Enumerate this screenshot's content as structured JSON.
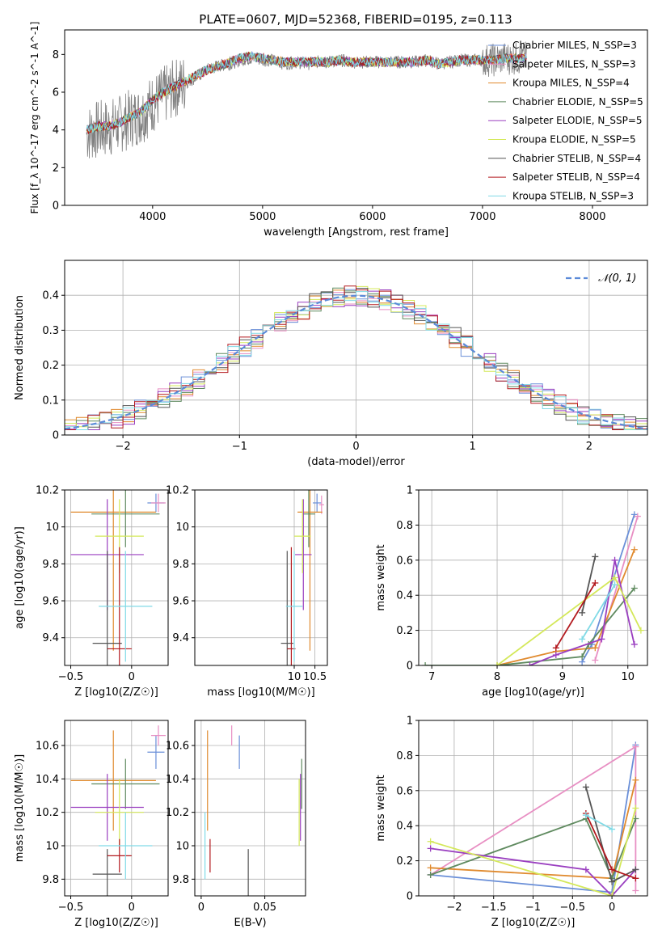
{
  "title": "PLATE=0607, MJD=52368, FIBERID=0195, z=0.113",
  "series_styles": [
    {
      "name": "Chabrier MILES",
      "color": "#6a8fd8"
    },
    {
      "name": "Salpeter MILES",
      "color": "#e88fc3"
    },
    {
      "name": "Kroupa MILES",
      "color": "#e08a2e"
    },
    {
      "name": "Chabrier ELODIE",
      "color": "#5f8a5f"
    },
    {
      "name": "Salpeter ELODIE",
      "color": "#9a3fc0"
    },
    {
      "name": "Kroupa ELODIE",
      "color": "#d4e85a"
    },
    {
      "name": "Chabrier STELIB",
      "color": "#555555"
    },
    {
      "name": "Salpeter STELIB",
      "color": "#b3191e"
    },
    {
      "name": "Kroupa STELIB",
      "color": "#80dae6"
    }
  ],
  "chart_data": [
    {
      "id": "spectrum",
      "type": "line",
      "title": "PLATE=0607, MJD=52368, FIBERID=0195, z=0.113",
      "xlabel": "wavelength [Angstrom, rest frame]",
      "ylabel": "Flux [f_λ 10^-17 erg cm^-2 s^-1 A^-1]",
      "xlim": [
        3200,
        8500
      ],
      "ylim": [
        0,
        9.3
      ],
      "xticks": [
        4000,
        5000,
        6000,
        7000,
        8000
      ],
      "yticks": [
        0,
        2,
        4,
        6,
        8
      ],
      "data_color": "#808080",
      "data_x": [
        3400,
        3500,
        3600,
        3700,
        3800,
        3900,
        4000,
        4100,
        4200,
        4300,
        4400,
        4500,
        4600,
        4700,
        4800,
        4900,
        5000,
        5100,
        5200,
        5300,
        5400,
        5500,
        5600,
        5700,
        5800,
        5900,
        6000,
        6100,
        6200,
        6300,
        6400,
        6500,
        6600,
        6700,
        6800,
        6900,
        7000,
        7100,
        7200,
        7300,
        7400
      ],
      "data_y": [
        3.8,
        4.0,
        4.1,
        4.3,
        4.6,
        4.8,
        5.4,
        5.8,
        6.2,
        6.5,
        6.8,
        7.2,
        7.4,
        7.5,
        7.7,
        7.8,
        7.7,
        7.7,
        7.5,
        7.6,
        7.5,
        7.6,
        7.6,
        7.7,
        7.6,
        7.6,
        7.6,
        7.6,
        7.6,
        7.6,
        7.6,
        7.7,
        7.5,
        7.6,
        7.7,
        7.7,
        7.7,
        7.7,
        7.8,
        7.8,
        7.8
      ],
      "model_x": [
        3400,
        3500,
        3600,
        3700,
        3800,
        3900,
        4000,
        4100,
        4200,
        4300,
        4400,
        4500,
        4600,
        4700,
        4800,
        4900,
        5000,
        5100,
        5200,
        5300,
        5400,
        5500,
        5600,
        5700,
        5800,
        5900,
        6000,
        6100,
        6200,
        6300,
        6400,
        6500,
        6600,
        6700,
        6800,
        6900,
        7000,
        7100,
        7200,
        7300,
        7400
      ],
      "model_y": [
        4.0,
        4.2,
        4.2,
        4.4,
        4.7,
        5.0,
        5.6,
        6.0,
        6.3,
        6.6,
        6.9,
        7.2,
        7.4,
        7.6,
        7.8,
        7.9,
        7.8,
        7.7,
        7.6,
        7.6,
        7.6,
        7.6,
        7.6,
        7.7,
        7.6,
        7.6,
        7.6,
        7.6,
        7.6,
        7.6,
        7.6,
        7.7,
        7.5,
        7.6,
        7.7,
        7.7,
        7.7,
        7.7,
        7.8,
        7.8,
        7.8
      ],
      "legend": [
        "Chabrier MILES, N_SSP=3",
        "Salpeter MILES, N_SSP=3",
        "Kroupa MILES, N_SSP=4",
        "Chabrier ELODIE, N_SSP=5",
        "Salpeter ELODIE, N_SSP=5",
        "Kroupa ELODIE, N_SSP=5",
        "Chabrier STELIB, N_SSP=4",
        "Salpeter STELIB, N_SSP=4",
        "Kroupa STELIB, N_SSP=3"
      ],
      "legend_placement": "upper right"
    },
    {
      "id": "residual-histogram",
      "type": "line",
      "xlabel": "(data-model)/error",
      "ylabel": "Normed distribution",
      "xlim": [
        -2.5,
        2.5
      ],
      "ylim": [
        0,
        0.5
      ],
      "xticks": [
        -2,
        -1,
        0,
        1,
        2
      ],
      "yticks": [
        0.0,
        0.1,
        0.2,
        0.3,
        0.4
      ],
      "grid": true,
      "reference_curve": "N(0,1)",
      "bin_centers": [
        -2.4,
        -2.2,
        -2.0,
        -1.8,
        -1.6,
        -1.4,
        -1.2,
        -1.0,
        -0.8,
        -0.6,
        -0.4,
        -0.2,
        0.0,
        0.2,
        0.4,
        0.6,
        0.8,
        1.0,
        1.2,
        1.4,
        1.6,
        1.8,
        2.0,
        2.2,
        2.4
      ],
      "histogram": [
        0.03,
        0.04,
        0.05,
        0.07,
        0.11,
        0.14,
        0.19,
        0.23,
        0.28,
        0.32,
        0.35,
        0.38,
        0.42,
        0.4,
        0.38,
        0.34,
        0.3,
        0.24,
        0.18,
        0.15,
        0.1,
        0.07,
        0.05,
        0.04,
        0.03
      ],
      "legend": [
        "𝒩(0, 1)"
      ],
      "legend_placement": "upper right"
    },
    {
      "id": "age-vs-metallicity",
      "type": "scatter",
      "xlabel": "Z [log10(Z/Z☉)]",
      "ylabel": "age  [log10(age/yr)]",
      "xlim": [
        -0.55,
        0.3
      ],
      "ylim": [
        9.25,
        10.2
      ],
      "xticks": [
        -0.5,
        0.0,
        0.5
      ],
      "yticks": [
        9.4,
        9.6,
        9.8,
        10.0,
        10.2
      ],
      "grid": true,
      "points": [
        {
          "series": 0,
          "x": 0.2,
          "xerr": 0.07,
          "y": 10.13,
          "yerr": 0.05
        },
        {
          "series": 1,
          "x": 0.22,
          "xerr": 0.06,
          "y": 10.13,
          "yerr": 0.05
        },
        {
          "series": 2,
          "x": -0.15,
          "xerr": 0.35,
          "y": 10.08,
          "yerr": 0.75
        },
        {
          "series": 3,
          "x": -0.05,
          "xerr": 0.28,
          "y": 10.07,
          "yerr": 0.18
        },
        {
          "series": 4,
          "x": -0.2,
          "xerr": 0.3,
          "y": 9.85,
          "yerr": 0.3
        },
        {
          "series": 5,
          "x": -0.1,
          "xerr": 0.2,
          "y": 9.95,
          "yerr": 0.2
        },
        {
          "series": 6,
          "x": -0.2,
          "xerr": 0.12,
          "y": 9.37,
          "yerr": 0.5
        },
        {
          "series": 7,
          "x": -0.1,
          "xerr": 0.1,
          "y": 9.34,
          "yerr": 0.55
        },
        {
          "series": 8,
          "x": -0.05,
          "xerr": 0.22,
          "y": 9.57,
          "yerr": 0.3
        }
      ]
    },
    {
      "id": "age-vs-mass",
      "type": "scatter",
      "xlabel": "mass [log10(M/M☉)]",
      "xlim": [
        7.6,
        10.8
      ],
      "ylim": [
        9.25,
        10.2
      ],
      "xticks": [
        10.0,
        10.5
      ],
      "yticks": [
        9.4,
        9.6,
        9.8,
        10.0,
        10.2
      ],
      "grid": true,
      "points": [
        {
          "series": 0,
          "x": 10.55,
          "xerr": 0.1,
          "y": 10.13,
          "yerr": 0.05
        },
        {
          "series": 1,
          "x": 10.66,
          "xerr": 0.06,
          "y": 10.12,
          "yerr": 0.05
        },
        {
          "series": 2,
          "x": 10.38,
          "xerr": 0.3,
          "y": 10.08,
          "yerr": 0.75
        },
        {
          "series": 3,
          "x": 10.35,
          "xerr": 0.15,
          "y": 10.07,
          "yerr": 0.18
        },
        {
          "series": 4,
          "x": 10.22,
          "xerr": 0.2,
          "y": 9.85,
          "yerr": 0.3
        },
        {
          "series": 5,
          "x": 10.2,
          "xerr": 0.2,
          "y": 9.95,
          "yerr": 0.2
        },
        {
          "series": 6,
          "x": 9.83,
          "xerr": 0.15,
          "y": 9.37,
          "yerr": 0.5
        },
        {
          "series": 7,
          "x": 9.93,
          "xerr": 0.1,
          "y": 9.34,
          "yerr": 0.55
        },
        {
          "series": 8,
          "x": 10.0,
          "xerr": 0.2,
          "y": 9.57,
          "yerr": 0.3
        }
      ]
    },
    {
      "id": "mass-weight-vs-age",
      "type": "line",
      "xlabel": "age  [log10(age/yr)]",
      "ylabel": "mass weight",
      "xlim": [
        6.8,
        10.3
      ],
      "ylim": [
        0,
        1
      ],
      "xticks": [
        7,
        8,
        9,
        10
      ],
      "yticks": [
        0.0,
        0.2,
        0.4,
        0.6,
        0.8,
        1.0
      ],
      "grid": true,
      "series": [
        {
          "series": 0,
          "x": [
            9.3,
            9.45,
            10.1
          ],
          "y": [
            0.02,
            0.12,
            0.86
          ]
        },
        {
          "series": 1,
          "x": [
            9.5,
            10.15
          ],
          "y": [
            0.03,
            0.85
          ]
        },
        {
          "series": 2,
          "x": [
            8.0,
            8.9,
            9.5,
            10.1
          ],
          "y": [
            0.0,
            0.08,
            0.1,
            0.66
          ]
        },
        {
          "series": 3,
          "x": [
            6.9,
            8.0,
            9.3,
            9.4,
            10.1
          ],
          "y": [
            0.0,
            0.0,
            0.05,
            0.12,
            0.44
          ]
        },
        {
          "series": 4,
          "x": [
            8.5,
            8.9,
            9.6,
            9.8,
            10.1
          ],
          "y": [
            0.0,
            0.06,
            0.15,
            0.6,
            0.12
          ]
        },
        {
          "series": 5,
          "x": [
            8.0,
            9.8,
            10.2
          ],
          "y": [
            0.0,
            0.5,
            0.2
          ]
        },
        {
          "series": 6,
          "x": [
            9.3,
            9.5
          ],
          "y": [
            0.3,
            0.62
          ]
        },
        {
          "series": 7,
          "x": [
            8.9,
            9.5
          ],
          "y": [
            0.1,
            0.47
          ]
        },
        {
          "series": 8,
          "x": [
            9.3,
            9.8
          ],
          "y": [
            0.15,
            0.46
          ]
        }
      ]
    },
    {
      "id": "mass-vs-metallicity",
      "type": "scatter",
      "xlabel": "Z [log10(Z/Z☉)]",
      "ylabel": "mass [log10(M/M☉)]",
      "xlim": [
        -0.55,
        0.3
      ],
      "ylim": [
        9.7,
        10.75
      ],
      "xticks": [
        -0.5,
        0.0,
        0.5
      ],
      "yticks": [
        9.8,
        10.0,
        10.2,
        10.4,
        10.6
      ],
      "grid": true,
      "points": [
        {
          "series": 0,
          "x": 0.2,
          "xerr": 0.07,
          "y": 10.56,
          "yerr": 0.1
        },
        {
          "series": 1,
          "x": 0.22,
          "xerr": 0.06,
          "y": 10.66,
          "yerr": 0.06
        },
        {
          "series": 2,
          "x": -0.15,
          "xerr": 0.35,
          "y": 10.39,
          "yerr": 0.3
        },
        {
          "series": 3,
          "x": -0.05,
          "xerr": 0.28,
          "y": 10.37,
          "yerr": 0.15
        },
        {
          "series": 4,
          "x": -0.2,
          "xerr": 0.3,
          "y": 10.23,
          "yerr": 0.2
        },
        {
          "series": 5,
          "x": -0.1,
          "xerr": 0.2,
          "y": 10.2,
          "yerr": 0.2
        },
        {
          "series": 6,
          "x": -0.2,
          "xerr": 0.12,
          "y": 9.83,
          "yerr": 0.15
        },
        {
          "series": 7,
          "x": -0.1,
          "xerr": 0.1,
          "y": 9.94,
          "yerr": 0.1
        },
        {
          "series": 8,
          "x": -0.05,
          "xerr": 0.22,
          "y": 10.0,
          "yerr": 0.2
        }
      ]
    },
    {
      "id": "mass-vs-ebv",
      "type": "scatter",
      "xlabel": "E(B-V)",
      "xlim": [
        -0.005,
        0.082
      ],
      "ylim": [
        9.7,
        10.75
      ],
      "xticks": [
        0.0,
        0.05
      ],
      "yticks": [
        9.8,
        10.0,
        10.2,
        10.4,
        10.6
      ],
      "grid": true,
      "points": [
        {
          "series": 0,
          "x": 0.03,
          "y": 10.56,
          "yerr": 0.1
        },
        {
          "series": 1,
          "x": 0.024,
          "y": 10.66,
          "yerr": 0.06
        },
        {
          "series": 2,
          "x": 0.005,
          "y": 10.39,
          "yerr": 0.3
        },
        {
          "series": 3,
          "x": 0.079,
          "y": 10.37,
          "yerr": 0.15
        },
        {
          "series": 4,
          "x": 0.078,
          "y": 10.23,
          "yerr": 0.2
        },
        {
          "series": 5,
          "x": 0.077,
          "y": 10.2,
          "yerr": 0.2
        },
        {
          "series": 6,
          "x": 0.037,
          "y": 9.83,
          "yerr": 0.15
        },
        {
          "series": 7,
          "x": 0.007,
          "y": 9.94,
          "yerr": 0.1
        },
        {
          "series": 8,
          "x": 0.003,
          "y": 10.0,
          "yerr": 0.2
        }
      ]
    },
    {
      "id": "mass-weight-vs-metallicity",
      "type": "line",
      "xlabel": "Z [log10(Z/Z☉)]",
      "ylabel": "mass weight",
      "xlim": [
        -2.45,
        0.45
      ],
      "ylim": [
        0,
        1
      ],
      "xticks": [
        -2.0,
        -1.5,
        -1.0,
        -0.5,
        0.0,
        0.5
      ],
      "yticks": [
        0.0,
        0.2,
        0.4,
        0.6,
        0.8,
        1.0
      ],
      "grid": true,
      "series": [
        {
          "series": 0,
          "x": [
            -2.3,
            0.0,
            0.3
          ],
          "y": [
            0.12,
            0.02,
            0.86
          ]
        },
        {
          "series": 1,
          "x": [
            -2.3,
            0.3,
            0.3
          ],
          "y": [
            0.12,
            0.85,
            0.03
          ]
        },
        {
          "series": 2,
          "x": [
            -2.3,
            0.0,
            0.3
          ],
          "y": [
            0.16,
            0.1,
            0.66
          ]
        },
        {
          "series": 3,
          "x": [
            -2.3,
            -0.33,
            0.0,
            0.3
          ],
          "y": [
            0.12,
            0.44,
            0.1,
            0.44
          ]
        },
        {
          "series": 4,
          "x": [
            -2.3,
            -0.33,
            0.0,
            0.3
          ],
          "y": [
            0.27,
            0.15,
            0.0,
            0.15
          ]
        },
        {
          "series": 5,
          "x": [
            -2.3,
            0.0,
            0.3
          ],
          "y": [
            0.31,
            0.0,
            0.5
          ]
        },
        {
          "series": 6,
          "x": [
            -0.33,
            0.0,
            0.3
          ],
          "y": [
            0.62,
            0.08,
            0.15
          ]
        },
        {
          "series": 7,
          "x": [
            -0.33,
            0.0,
            0.3
          ],
          "y": [
            0.47,
            0.15,
            0.1
          ]
        },
        {
          "series": 8,
          "x": [
            -0.33,
            0.0
          ],
          "y": [
            0.46,
            0.38
          ]
        }
      ]
    }
  ]
}
